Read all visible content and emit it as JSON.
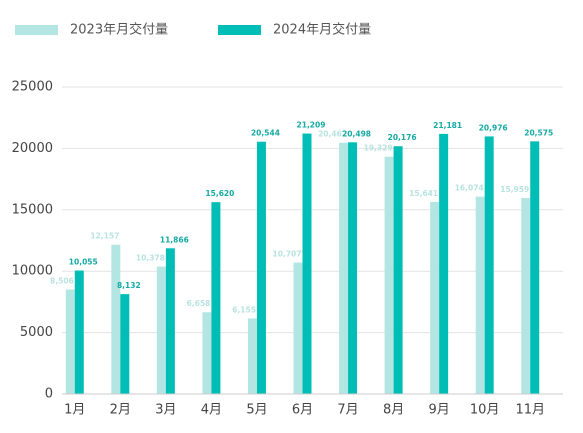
{
  "chart_data": {
    "type": "bar",
    "categories": [
      "1月",
      "2月",
      "3月",
      "4月",
      "5月",
      "6月",
      "7月",
      "8月",
      "9月",
      "10月",
      "11月"
    ],
    "series": [
      {
        "name": "2023年月交付量",
        "color": "#b3e6e3",
        "values": [
          8506,
          12157,
          10378,
          6658,
          6155,
          10707,
          20462,
          19329,
          15641,
          16074,
          15959
        ],
        "value_labels": [
          "8,506",
          "12,157",
          "10,378",
          "6,658",
          "6,155",
          "10,707",
          "20,462",
          "19,329",
          "15,641",
          "16,074",
          "15,959"
        ]
      },
      {
        "name": "2024年月交付量",
        "color": "#00bdb6",
        "values": [
          10055,
          8132,
          11866,
          15620,
          20544,
          21209,
          20498,
          20176,
          21181,
          20976,
          20575
        ],
        "value_labels": [
          "10,055",
          "8,132",
          "11,866",
          "15,620",
          "20,544",
          "21,209",
          "20,498",
          "20,176",
          "21,181",
          "20,976",
          "20,575"
        ]
      }
    ],
    "ylim": [
      0,
      25000
    ],
    "yticks": [
      0,
      5000,
      10000,
      15000,
      20000,
      25000
    ],
    "grid": true,
    "legend": "top"
  }
}
